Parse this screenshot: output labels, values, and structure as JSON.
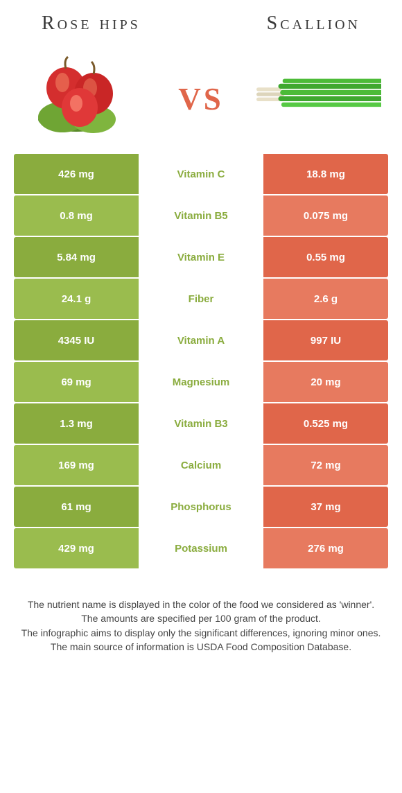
{
  "header": {
    "left": "Rose hips",
    "right": "Scallion"
  },
  "vs_label": "vs",
  "colors": {
    "green_dark": "#8aac3e",
    "green_light": "#9abc4e",
    "orange_dark": "#e0664a",
    "orange_light": "#e77a5f",
    "nutrient_text": "#8aac3e",
    "header_text": "#3a3a3a",
    "vs_text": "#e0664a",
    "cell_text": "#ffffff",
    "footer_text": "#444444",
    "background": "#ffffff"
  },
  "nutrients": [
    {
      "name": "Vitamin C",
      "left": "426 mg",
      "right": "18.8 mg",
      "winner": "left"
    },
    {
      "name": "Vitamin B5",
      "left": "0.8 mg",
      "right": "0.075 mg",
      "winner": "left"
    },
    {
      "name": "Vitamin E",
      "left": "5.84 mg",
      "right": "0.55 mg",
      "winner": "left"
    },
    {
      "name": "Fiber",
      "left": "24.1 g",
      "right": "2.6 g",
      "winner": "left"
    },
    {
      "name": "Vitamin A",
      "left": "4345 IU",
      "right": "997 IU",
      "winner": "left"
    },
    {
      "name": "Magnesium",
      "left": "69 mg",
      "right": "20 mg",
      "winner": "left"
    },
    {
      "name": "Vitamin B3",
      "left": "1.3 mg",
      "right": "0.525 mg",
      "winner": "left"
    },
    {
      "name": "Calcium",
      "left": "169 mg",
      "right": "72 mg",
      "winner": "left"
    },
    {
      "name": "Phosphorus",
      "left": "61 mg",
      "right": "37 mg",
      "winner": "left"
    },
    {
      "name": "Potassium",
      "left": "429 mg",
      "right": "276 mg",
      "winner": "left"
    }
  ],
  "footer": {
    "line1": "The nutrient name is displayed in the color of the food we considered as 'winner'.",
    "line2": "The amounts are specified per 100 gram of the product.",
    "line3": "The infographic aims to display only the significant differences, ignoring minor ones.",
    "line4": "The main source of information is USDA Food Composition Database."
  }
}
